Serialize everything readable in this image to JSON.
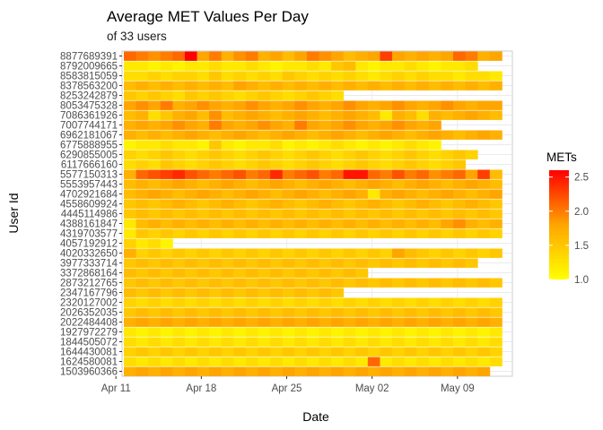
{
  "chart_data": {
    "type": "heatmap",
    "title": "Average MET Values Per Day",
    "subtitle": "of 33 users",
    "xlabel": "Date",
    "ylabel": "User Id",
    "x_ticks": [
      "Apr 11",
      "Apr 18",
      "Apr 25",
      "May 02",
      "May 09"
    ],
    "x_start": "2016-04-12",
    "day_count": 31,
    "legend": {
      "title": "METs",
      "min": 1.0,
      "max": 2.6,
      "ticks": [
        "1.0",
        "1.5",
        "2.0",
        "2.5"
      ],
      "colors": [
        "#ffff00",
        "#ffa500",
        "#ff0000"
      ]
    },
    "users": [
      {
        "id": "8877689391",
        "days": 31,
        "values": [
          2.1,
          2.0,
          1.9,
          2.0,
          2.1,
          2.6,
          1.8,
          2.0,
          1.7,
          1.9,
          2.0,
          1.7,
          1.8,
          1.6,
          1.8,
          2.0,
          1.9,
          1.8,
          1.6,
          1.7,
          1.8,
          2.3,
          1.8,
          1.7,
          1.8,
          1.7,
          1.8,
          2.1,
          2.0,
          1.7,
          1.8
        ]
      },
      {
        "id": "8792009665",
        "days": 29,
        "values": [
          1.2,
          1.2,
          1.1,
          1.2,
          1.1,
          1.2,
          1.2,
          1.3,
          1.2,
          1.2,
          1.3,
          1.2,
          1.1,
          1.2,
          1.2,
          1.3,
          1.2,
          1.5,
          1.6,
          1.2,
          1.1,
          1.2,
          1.2,
          1.3,
          1.2,
          1.1,
          1.2,
          1.2,
          1.3
        ]
      },
      {
        "id": "8583815059",
        "days": 31,
        "values": [
          1.3,
          1.3,
          1.4,
          1.3,
          1.4,
          1.4,
          1.3,
          1.5,
          1.3,
          1.4,
          1.3,
          1.4,
          1.3,
          1.5,
          1.4,
          1.3,
          1.4,
          1.3,
          1.4,
          1.3,
          1.2,
          1.3,
          1.4,
          1.3,
          1.4,
          1.3,
          1.3,
          1.2,
          1.3,
          1.3,
          1.2
        ]
      },
      {
        "id": "8378563200",
        "days": 31,
        "values": [
          1.6,
          1.7,
          1.6,
          1.7,
          1.6,
          1.7,
          1.6,
          1.7,
          1.6,
          1.8,
          1.7,
          1.6,
          1.7,
          1.6,
          1.7,
          1.6,
          1.7,
          1.6,
          1.7,
          1.6,
          1.7,
          1.6,
          1.7,
          1.6,
          1.7,
          1.6,
          1.7,
          1.6,
          1.7,
          1.6,
          1.7
        ]
      },
      {
        "id": "8253242879",
        "days": 18,
        "values": [
          1.5,
          1.4,
          1.5,
          1.4,
          1.3,
          1.5,
          1.4,
          1.5,
          1.4,
          1.3,
          1.4,
          1.5,
          1.4,
          1.3,
          1.4,
          1.5,
          1.4,
          1.3
        ]
      },
      {
        "id": "8053475328",
        "days": 31,
        "values": [
          1.8,
          1.9,
          1.8,
          2.0,
          1.7,
          1.8,
          1.9,
          1.8,
          1.7,
          1.8,
          1.9,
          1.8,
          1.7,
          1.8,
          1.9,
          1.8,
          1.7,
          1.8,
          1.9,
          1.8,
          1.7,
          1.8,
          1.9,
          1.8,
          1.7,
          1.8,
          1.9,
          1.8,
          1.7,
          1.8,
          1.8
        ]
      },
      {
        "id": "7086361926",
        "days": 31,
        "values": [
          1.6,
          1.7,
          1.3,
          1.5,
          1.7,
          1.8,
          1.6,
          1.9,
          1.6,
          1.7,
          1.8,
          1.7,
          1.6,
          1.7,
          1.8,
          1.7,
          1.6,
          1.7,
          1.8,
          1.7,
          1.6,
          1.2,
          1.7,
          1.6,
          1.3,
          1.7,
          1.6,
          1.7,
          1.8,
          1.7,
          1.6
        ]
      },
      {
        "id": "7007744171",
        "days": 26,
        "values": [
          1.7,
          1.8,
          1.7,
          1.8,
          1.9,
          1.8,
          1.7,
          2.0,
          1.8,
          1.7,
          1.8,
          1.9,
          1.8,
          1.7,
          2.0,
          1.8,
          1.7,
          1.8,
          1.9,
          1.8,
          1.7,
          1.8,
          1.9,
          1.8,
          1.7,
          1.8
        ]
      },
      {
        "id": "6962181067",
        "days": 31,
        "values": [
          1.7,
          1.6,
          1.7,
          1.6,
          1.7,
          1.8,
          1.7,
          1.6,
          1.7,
          1.8,
          1.7,
          1.6,
          1.7,
          1.8,
          1.7,
          1.6,
          1.7,
          1.8,
          1.7,
          1.6,
          1.7,
          1.8,
          1.7,
          1.6,
          1.7,
          1.8,
          1.7,
          1.6,
          1.7,
          1.8,
          1.7
        ]
      },
      {
        "id": "6775888955",
        "days": 26,
        "values": [
          1.1,
          1.2,
          1.2,
          1.3,
          1.2,
          1.2,
          1.1,
          1.5,
          1.2,
          1.1,
          1.2,
          1.2,
          1.3,
          1.1,
          1.2,
          1.1,
          1.2,
          1.3,
          1.2,
          1.1,
          1.2,
          1.1,
          1.2,
          1.3,
          1.2,
          1.1
        ]
      },
      {
        "id": "6290855005",
        "days": 29,
        "values": [
          1.4,
          1.3,
          1.4,
          1.5,
          1.4,
          1.3,
          1.4,
          1.5,
          1.4,
          1.3,
          1.4,
          1.5,
          1.4,
          1.3,
          1.4,
          1.5,
          1.4,
          1.3,
          1.4,
          1.5,
          1.4,
          1.3,
          1.4,
          1.5,
          1.4,
          1.3,
          1.4,
          1.5,
          1.4
        ]
      },
      {
        "id": "6117666160",
        "days": 28,
        "values": [
          1.3,
          1.4,
          1.3,
          1.5,
          1.4,
          1.3,
          1.4,
          1.5,
          1.4,
          1.3,
          1.4,
          1.5,
          1.4,
          1.3,
          1.4,
          1.5,
          1.4,
          1.3,
          1.4,
          1.5,
          1.4,
          1.3,
          1.4,
          1.5,
          1.4,
          1.3,
          1.4,
          1.5
        ]
      },
      {
        "id": "5577150313",
        "days": 31,
        "values": [
          1.7,
          2.1,
          2.2,
          2.3,
          2.4,
          2.2,
          2.1,
          2.0,
          2.1,
          2.2,
          2.0,
          2.1,
          2.4,
          2.0,
          2.1,
          2.2,
          2.0,
          2.1,
          2.5,
          2.5,
          2.1,
          2.0,
          2.2,
          2.0,
          2.1,
          1.9,
          2.0,
          2.1,
          1.8,
          2.3,
          1.6
        ]
      },
      {
        "id": "5553957443",
        "days": 31,
        "values": [
          1.6,
          1.7,
          1.6,
          1.7,
          1.8,
          1.7,
          1.6,
          1.7,
          1.8,
          1.7,
          1.6,
          1.7,
          1.8,
          1.7,
          1.6,
          1.7,
          1.8,
          1.7,
          1.6,
          1.7,
          1.8,
          1.7,
          1.6,
          1.7,
          1.8,
          1.7,
          1.6,
          1.7,
          1.8,
          1.7,
          1.6
        ]
      },
      {
        "id": "4702921684",
        "days": 31,
        "values": [
          1.6,
          1.7,
          1.8,
          1.7,
          1.6,
          1.7,
          1.8,
          1.7,
          1.6,
          1.7,
          1.8,
          1.7,
          1.6,
          1.7,
          1.8,
          1.7,
          1.6,
          1.7,
          1.8,
          1.7,
          1.2,
          1.7,
          1.8,
          1.7,
          1.6,
          1.7,
          1.8,
          1.7,
          1.6,
          1.7,
          1.8
        ]
      },
      {
        "id": "4558609924",
        "days": 31,
        "values": [
          1.5,
          1.6,
          1.5,
          1.6,
          1.7,
          1.6,
          1.5,
          1.6,
          1.7,
          1.6,
          1.5,
          1.6,
          1.7,
          1.6,
          1.5,
          1.6,
          1.7,
          1.6,
          1.5,
          1.6,
          1.7,
          1.6,
          1.5,
          1.6,
          1.7,
          1.6,
          1.5,
          1.6,
          1.7,
          1.6,
          1.5
        ]
      },
      {
        "id": "4445114986",
        "days": 31,
        "values": [
          1.5,
          1.6,
          1.5,
          1.6,
          1.5,
          1.6,
          1.5,
          1.6,
          1.5,
          1.6,
          1.5,
          1.6,
          1.5,
          1.6,
          1.5,
          1.6,
          1.5,
          1.6,
          1.5,
          1.6,
          1.5,
          1.6,
          1.5,
          1.6,
          1.5,
          1.6,
          1.5,
          1.6,
          1.5,
          1.6,
          1.5
        ]
      },
      {
        "id": "4388161847",
        "days": 31,
        "values": [
          1.2,
          1.6,
          1.7,
          1.6,
          1.7,
          1.6,
          1.7,
          1.6,
          1.7,
          1.6,
          1.7,
          1.6,
          1.7,
          1.6,
          1.7,
          1.6,
          1.7,
          1.6,
          1.7,
          1.6,
          1.7,
          1.6,
          1.7,
          1.6,
          1.7,
          1.6,
          1.8,
          1.9,
          1.7,
          1.6,
          1.7
        ]
      },
      {
        "id": "4319703577",
        "days": 31,
        "values": [
          1.2,
          1.5,
          1.4,
          1.5,
          1.4,
          1.5,
          1.4,
          1.5,
          1.4,
          1.5,
          1.4,
          1.5,
          1.4,
          1.5,
          1.4,
          1.5,
          1.4,
          1.5,
          1.4,
          1.5,
          1.4,
          1.5,
          1.4,
          1.5,
          1.4,
          1.5,
          1.4,
          1.5,
          1.4,
          1.5,
          1.4
        ]
      },
      {
        "id": "4057192912",
        "days": 4,
        "values": [
          1.4,
          1.2,
          1.3,
          1.1
        ]
      },
      {
        "id": "4020332650",
        "days": 31,
        "values": [
          1.7,
          1.4,
          1.5,
          1.4,
          1.5,
          1.4,
          1.5,
          1.4,
          1.5,
          1.4,
          1.5,
          1.4,
          1.5,
          1.4,
          1.5,
          1.4,
          1.5,
          1.4,
          1.5,
          1.4,
          1.5,
          1.4,
          1.8,
          1.6,
          1.5,
          1.4,
          1.5,
          1.4,
          1.5,
          1.4,
          1.5
        ]
      },
      {
        "id": "3977333714",
        "days": 29,
        "values": [
          1.5,
          1.6,
          1.5,
          1.6,
          1.5,
          1.6,
          1.5,
          1.6,
          1.5,
          1.6,
          1.5,
          1.6,
          1.5,
          1.6,
          1.5,
          1.6,
          1.5,
          1.6,
          1.5,
          1.6,
          1.5,
          1.6,
          1.5,
          1.6,
          1.5,
          1.6,
          1.5,
          1.6,
          1.5
        ]
      },
      {
        "id": "3372868164",
        "days": 20,
        "values": [
          1.6,
          1.5,
          1.6,
          1.5,
          1.6,
          1.5,
          1.6,
          1.5,
          1.6,
          1.5,
          1.6,
          1.5,
          1.6,
          1.5,
          1.6,
          1.5,
          1.6,
          1.5,
          1.6,
          1.5
        ]
      },
      {
        "id": "2873212765",
        "days": 31,
        "values": [
          1.5,
          1.6,
          1.5,
          1.6,
          1.5,
          1.6,
          1.5,
          1.6,
          1.5,
          1.6,
          1.5,
          1.6,
          1.5,
          1.6,
          1.5,
          1.6,
          1.5,
          1.6,
          1.5,
          1.6,
          1.5,
          1.6,
          1.5,
          1.6,
          1.5,
          1.6,
          1.5,
          1.6,
          1.5,
          1.6,
          1.5
        ]
      },
      {
        "id": "2347167796",
        "days": 18,
        "values": [
          1.6,
          1.5,
          1.6,
          1.5,
          1.6,
          1.5,
          1.6,
          1.5,
          1.6,
          1.5,
          1.6,
          1.5,
          1.6,
          1.5,
          1.6,
          1.5,
          1.6,
          1.5
        ]
      },
      {
        "id": "2320127002",
        "days": 31,
        "values": [
          1.4,
          1.3,
          1.4,
          1.3,
          1.4,
          1.3,
          1.4,
          1.3,
          1.4,
          1.3,
          1.4,
          1.3,
          1.4,
          1.3,
          1.4,
          1.3,
          1.4,
          1.3,
          1.4,
          1.3,
          1.4,
          1.3,
          1.4,
          1.3,
          1.4,
          1.3,
          1.4,
          1.3,
          1.4,
          1.3,
          1.4
        ]
      },
      {
        "id": "2026352035",
        "days": 31,
        "values": [
          1.5,
          1.6,
          1.5,
          1.6,
          1.5,
          1.6,
          1.5,
          1.6,
          1.5,
          1.6,
          1.5,
          1.6,
          1.5,
          1.6,
          1.5,
          1.6,
          1.5,
          1.6,
          1.5,
          1.6,
          1.5,
          1.6,
          1.5,
          1.6,
          1.5,
          1.6,
          1.5,
          1.6,
          1.5,
          1.6,
          1.5
        ]
      },
      {
        "id": "2022484408",
        "days": 31,
        "values": [
          1.7,
          1.8,
          1.7,
          1.8,
          1.7,
          1.8,
          1.7,
          1.8,
          1.7,
          1.8,
          1.7,
          1.8,
          1.7,
          1.8,
          1.7,
          1.8,
          1.7,
          1.8,
          1.7,
          1.8,
          1.7,
          1.8,
          1.7,
          1.8,
          1.7,
          1.8,
          1.7,
          1.8,
          1.7,
          1.8,
          1.7
        ]
      },
      {
        "id": "1927972279",
        "days": 31,
        "values": [
          1.2,
          1.1,
          1.2,
          1.1,
          1.2,
          1.1,
          1.2,
          1.1,
          1.2,
          1.1,
          1.2,
          1.1,
          1.2,
          1.1,
          1.2,
          1.1,
          1.2,
          1.1,
          1.2,
          1.1,
          1.2,
          1.1,
          1.2,
          1.1,
          1.2,
          1.1,
          1.2,
          1.1,
          1.2,
          1.1,
          1.2
        ]
      },
      {
        "id": "1844505072",
        "days": 31,
        "values": [
          1.3,
          1.2,
          1.3,
          1.2,
          1.3,
          1.2,
          1.3,
          1.2,
          1.3,
          1.2,
          1.3,
          1.2,
          1.3,
          1.2,
          1.3,
          1.2,
          1.3,
          1.2,
          1.3,
          1.2,
          1.3,
          1.2,
          1.3,
          1.2,
          1.3,
          1.2,
          1.3,
          1.2,
          1.3,
          1.2,
          1.3
        ]
      },
      {
        "id": "1644430081",
        "days": 31,
        "values": [
          1.4,
          1.5,
          1.4,
          1.5,
          1.4,
          1.5,
          1.4,
          1.5,
          1.4,
          1.5,
          1.4,
          1.5,
          1.4,
          1.5,
          1.4,
          1.5,
          1.4,
          1.5,
          1.4,
          1.5,
          1.4,
          1.5,
          1.4,
          1.5,
          1.4,
          1.5,
          1.4,
          1.5,
          1.4,
          1.5,
          1.4
        ]
      },
      {
        "id": "1624580081",
        "days": 31,
        "values": [
          1.3,
          1.2,
          1.3,
          1.2,
          1.3,
          1.2,
          1.3,
          1.2,
          1.3,
          1.2,
          1.3,
          1.2,
          1.3,
          1.2,
          1.3,
          1.2,
          1.3,
          1.2,
          1.3,
          1.2,
          2.1,
          1.2,
          1.3,
          1.2,
          1.3,
          1.2,
          1.3,
          1.2,
          1.3,
          1.2,
          1.3
        ]
      },
      {
        "id": "1503960366",
        "days": 30,
        "values": [
          1.7,
          1.8,
          1.7,
          1.8,
          1.7,
          1.8,
          1.7,
          1.8,
          1.7,
          1.8,
          1.7,
          1.8,
          1.7,
          1.8,
          1.7,
          1.8,
          1.7,
          1.8,
          1.7,
          1.8,
          1.7,
          1.8,
          1.7,
          1.8,
          1.7,
          1.8,
          1.7,
          1.8,
          1.7,
          1.8
        ]
      }
    ]
  }
}
